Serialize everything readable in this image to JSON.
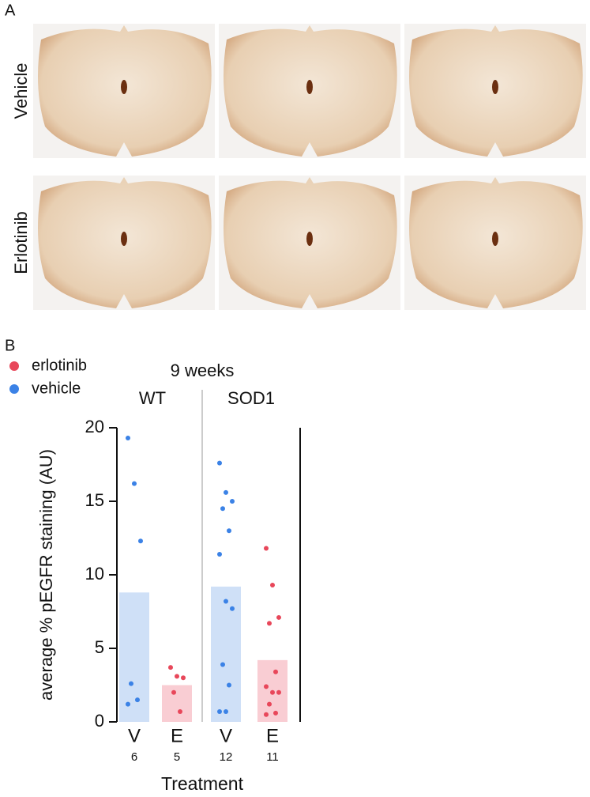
{
  "panel_a": {
    "letter": "A",
    "rows": [
      "Vehicle",
      "Erlotinib"
    ]
  },
  "chart_data": {
    "type": "bar",
    "letter": "B",
    "title": "9 weeks",
    "groups": [
      "WT",
      "SOD1"
    ],
    "categories": [
      "V",
      "E",
      "V",
      "E"
    ],
    "n": [
      6,
      5,
      12,
      11
    ],
    "y_label": "average % pEGFR staining (AU)",
    "x_label": "Treatment",
    "ylim": [
      0,
      20
    ],
    "yticks": [
      0,
      5,
      10,
      15,
      20
    ],
    "series": [
      {
        "name": "erlotinib",
        "color": "#e8475a",
        "bar_color": "#f9cdd3",
        "values": [
          null,
          2.5,
          null,
          4.2
        ],
        "points": [
          [],
          [
            3.7,
            3.1,
            3.0,
            2.0,
            0.7
          ],
          [],
          [
            11.8,
            9.3,
            7.1,
            6.7,
            3.4,
            2.4,
            2.0,
            2.0,
            1.2,
            0.6,
            0.5
          ]
        ]
      },
      {
        "name": "vehicle",
        "color": "#3b82e6",
        "bar_color": "#cfe0f7",
        "values": [
          8.8,
          null,
          9.2,
          null
        ],
        "points": [
          [
            19.3,
            16.2,
            12.3,
            2.6,
            1.5,
            1.2
          ],
          [],
          [
            17.6,
            15.6,
            15.0,
            14.5,
            13.0,
            11.4,
            8.2,
            7.7,
            3.9,
            2.5,
            0.7,
            0.7
          ],
          []
        ]
      }
    ]
  }
}
